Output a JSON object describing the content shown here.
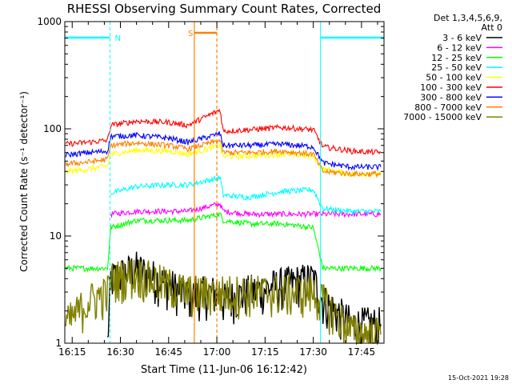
{
  "chart_data": {
    "type": "line",
    "title": "RHESSI Observing Summary Count Rates, Corrected",
    "xlabel": "Start Time (11-Jun-06 16:12:42)",
    "ylabel": "Corrected Count Rate (s⁻¹ detector⁻¹)",
    "y_scale": "log",
    "ylim": [
      1,
      1000
    ],
    "xlim": [
      "16:12:42",
      "17:52:00"
    ],
    "x_unit": "time (UT)",
    "y_ticks": [
      "1",
      "10",
      "100",
      "1000"
    ],
    "x_ticks": [
      "16:15",
      "16:30",
      "16:45",
      "17:00",
      "17:15",
      "17:30",
      "17:45"
    ],
    "legend_header": [
      "Det 1,3,4,5,6,9,",
      "Att 0"
    ],
    "legend_placement": "right, outside plot",
    "grid": false,
    "footer_timestamp": "15-Oct-2021 19:28",
    "night_intervals": [
      {
        "start": "16:12:42",
        "end": "16:26:45"
      },
      {
        "start": "17:32:15",
        "end": "17:52:00"
      }
    ],
    "saa_interval": {
      "start": "16:53:00",
      "end": "17:00:00"
    },
    "flag_markers": [
      {
        "label": "N",
        "start": "16:12:42",
        "end": "16:26:45"
      },
      {
        "label": "S",
        "start": "16:53:00",
        "end": "17:00:00"
      },
      {
        "label": "",
        "start": "17:32:15",
        "end": "17:52:00"
      }
    ],
    "x": [
      "16:13",
      "16:20",
      "16:26",
      "16:27",
      "16:35",
      "16:45",
      "16:51",
      "17:01",
      "17:02",
      "17:10",
      "17:20",
      "17:30",
      "17:33",
      "17:42",
      "17:51"
    ],
    "series": [
      {
        "name": "3 - 6 keV",
        "color": "#000000",
        "values": [
          null,
          null,
          1.0,
          4.0,
          5.0,
          3.5,
          2.8,
          3.0,
          2.5,
          3.0,
          3.5,
          4.0,
          2.5,
          1.5,
          1.5
        ]
      },
      {
        "name": "6 - 12 keV",
        "color": "#ff00ff",
        "values": [
          null,
          null,
          null,
          16,
          17,
          17,
          17,
          20,
          17,
          16,
          16,
          16,
          16,
          16,
          16
        ]
      },
      {
        "name": "12 - 25 keV",
        "color": "#00ff00",
        "values": [
          5,
          5,
          5,
          12,
          14,
          14,
          14,
          16,
          14,
          13,
          13,
          12,
          5,
          5,
          5
        ]
      },
      {
        "name": "25 - 50 keV",
        "color": "#00ffff",
        "values": [
          null,
          null,
          null,
          25,
          29,
          30,
          30,
          35,
          24,
          23,
          26,
          27,
          18,
          17,
          17
        ]
      },
      {
        "name": "50 - 100 keV",
        "color": "#ffff00",
        "values": [
          40,
          42,
          45,
          58,
          63,
          62,
          58,
          70,
          55,
          56,
          58,
          56,
          42,
          38,
          38
        ]
      },
      {
        "name": "100 - 300 keV",
        "color": "#ff0000",
        "values": [
          72,
          75,
          78,
          108,
          118,
          115,
          108,
          150,
          95,
          98,
          103,
          98,
          68,
          62,
          60
        ]
      },
      {
        "name": "300 - 800 keV",
        "color": "#0000ff",
        "values": [
          57,
          60,
          62,
          85,
          87,
          82,
          75,
          90,
          70,
          70,
          72,
          68,
          48,
          44,
          44
        ]
      },
      {
        "name": "800 - 7000 keV",
        "color": "#ff8000",
        "values": [
          47,
          49,
          52,
          70,
          74,
          70,
          65,
          78,
          60,
          60,
          62,
          58,
          40,
          38,
          38
        ]
      },
      {
        "name": "7000 - 15000 keV",
        "color": "#808000",
        "values": [
          1.5,
          2.5,
          3.0,
          4.0,
          4.5,
          3.5,
          3.0,
          3.0,
          3.0,
          3.0,
          3.0,
          3.0,
          2.5,
          1.3,
          1.2
        ]
      }
    ]
  }
}
